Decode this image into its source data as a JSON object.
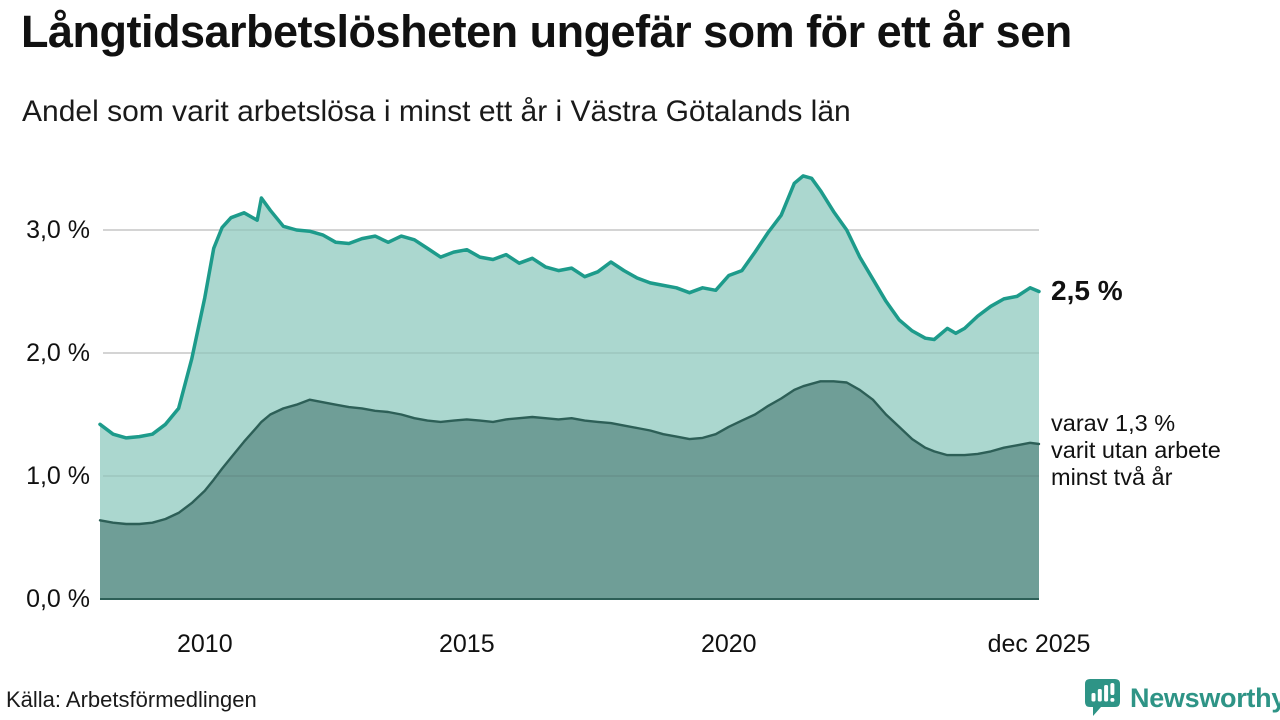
{
  "header": {
    "title": "Långtidsarbetslösheten ungefär som för ett år sen",
    "subtitle": "Andel som varit arbetslösa i minst ett år i Västra Götalands län"
  },
  "annotations": {
    "latest_total": "2,5 %",
    "two_year_line1": "varav 1,3 %",
    "two_year_line2": "varit utan arbete",
    "two_year_line3": "minst två år"
  },
  "footer": {
    "source": "Källa: Arbetsförmedlingen",
    "brand": "Newsworthy"
  },
  "colors": {
    "total_line": "#1d9b8b",
    "total_fill": "#abd7cf",
    "two_year_line": "#2d5f57",
    "two_year_fill": "#6f9e97",
    "gridline": "#d9d9d9",
    "gridline_overlay": "rgba(40,40,40,0.10)",
    "baseline": "#2d5f57",
    "brand_teal": "#2e9486",
    "text": "#111111"
  },
  "chart_data": {
    "type": "area",
    "title": "Långtidsarbetslösheten ungefär som för ett år sen",
    "subtitle": "Andel som varit arbetslösa i minst ett år i Västra Götalands län",
    "xlabel": "",
    "ylabel": "",
    "x_range": [
      2008.0,
      2025.92
    ],
    "y_range": [
      0,
      3.6
    ],
    "grid": "horizontal",
    "legend_position": "right-annotations",
    "y_ticks": [
      {
        "label": "0,0 %",
        "value": 0
      },
      {
        "label": "1,0 %",
        "value": 1
      },
      {
        "label": "2,0 %",
        "value": 2
      },
      {
        "label": "3,0 %",
        "value": 3
      }
    ],
    "x_ticks": [
      {
        "label": "2010",
        "year": 2010
      },
      {
        "label": "2015",
        "year": 2015
      },
      {
        "label": "2020",
        "year": 2020
      },
      {
        "label": "dec 2025",
        "year": 2025.92
      }
    ],
    "x": [
      2008.0,
      2008.25,
      2008.5,
      2008.75,
      2009.0,
      2009.25,
      2009.5,
      2009.75,
      2010.0,
      2010.17,
      2010.33,
      2010.5,
      2010.75,
      2011.0,
      2011.08,
      2011.25,
      2011.5,
      2011.75,
      2012.0,
      2012.25,
      2012.5,
      2012.75,
      2013.0,
      2013.25,
      2013.5,
      2013.75,
      2014.0,
      2014.25,
      2014.5,
      2014.75,
      2015.0,
      2015.25,
      2015.5,
      2015.75,
      2016.0,
      2016.25,
      2016.5,
      2016.75,
      2017.0,
      2017.25,
      2017.5,
      2017.75,
      2018.0,
      2018.25,
      2018.5,
      2018.75,
      2019.0,
      2019.25,
      2019.5,
      2019.75,
      2020.0,
      2020.25,
      2020.5,
      2020.75,
      2021.0,
      2021.25,
      2021.42,
      2021.58,
      2021.75,
      2022.0,
      2022.25,
      2022.5,
      2022.75,
      2023.0,
      2023.25,
      2023.5,
      2023.75,
      2023.92,
      2024.17,
      2024.33,
      2024.5,
      2024.75,
      2025.0,
      2025.25,
      2025.5,
      2025.75,
      2025.92
    ],
    "series": [
      {
        "name": "Andel arbetslösa minst ett år",
        "latest_value": 2.5,
        "line_color": "#1d9b8b",
        "fill_color": "#abd7cf",
        "values": [
          1.42,
          1.34,
          1.31,
          1.32,
          1.34,
          1.42,
          1.55,
          1.95,
          2.45,
          2.85,
          3.02,
          3.1,
          3.14,
          3.08,
          3.26,
          3.16,
          3.03,
          3.0,
          2.99,
          2.96,
          2.9,
          2.89,
          2.93,
          2.95,
          2.9,
          2.95,
          2.92,
          2.85,
          2.78,
          2.82,
          2.84,
          2.78,
          2.76,
          2.8,
          2.73,
          2.77,
          2.7,
          2.67,
          2.69,
          2.62,
          2.66,
          2.74,
          2.67,
          2.61,
          2.57,
          2.55,
          2.53,
          2.49,
          2.53,
          2.51,
          2.63,
          2.67,
          2.82,
          2.98,
          3.12,
          3.38,
          3.44,
          3.42,
          3.32,
          3.15,
          3.0,
          2.78,
          2.6,
          2.42,
          2.27,
          2.18,
          2.12,
          2.11,
          2.2,
          2.16,
          2.2,
          2.3,
          2.38,
          2.44,
          2.46,
          2.53,
          2.5
        ]
      },
      {
        "name": "varav utan arbete minst två år",
        "latest_value": 1.3,
        "line_color": "#2d5f57",
        "fill_color": "#6f9e97",
        "values": [
          0.64,
          0.62,
          0.61,
          0.61,
          0.62,
          0.65,
          0.7,
          0.78,
          0.88,
          0.97,
          1.06,
          1.15,
          1.28,
          1.4,
          1.44,
          1.5,
          1.55,
          1.58,
          1.62,
          1.6,
          1.58,
          1.56,
          1.55,
          1.53,
          1.52,
          1.5,
          1.47,
          1.45,
          1.44,
          1.45,
          1.46,
          1.45,
          1.44,
          1.46,
          1.47,
          1.48,
          1.47,
          1.46,
          1.47,
          1.45,
          1.44,
          1.43,
          1.41,
          1.39,
          1.37,
          1.34,
          1.32,
          1.3,
          1.31,
          1.34,
          1.4,
          1.45,
          1.5,
          1.57,
          1.63,
          1.7,
          1.73,
          1.75,
          1.77,
          1.77,
          1.76,
          1.7,
          1.62,
          1.5,
          1.4,
          1.3,
          1.23,
          1.2,
          1.17,
          1.17,
          1.17,
          1.18,
          1.2,
          1.23,
          1.25,
          1.27,
          1.26
        ]
      }
    ]
  }
}
